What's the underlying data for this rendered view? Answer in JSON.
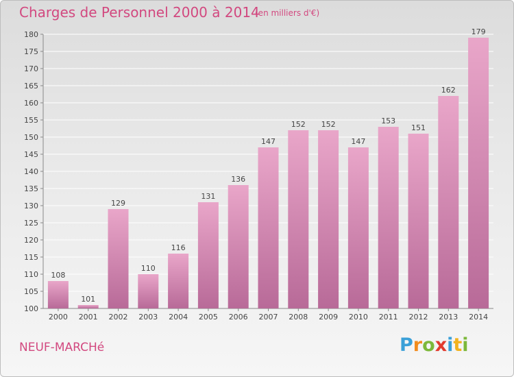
{
  "title": "Charges de Personnel 2000 à 2014",
  "subtitle": "(en milliers d'€)",
  "commune": "NEUF-MARCHé",
  "logo": {
    "letters": [
      "P",
      "r",
      "o",
      "x",
      "i",
      "t",
      "i"
    ],
    "colors": [
      "#3aa0d8",
      "#f28c1e",
      "#7cb83a",
      "#e23b2e",
      "#3aa0d8",
      "#f2b21e",
      "#7cb83a"
    ]
  },
  "colors": {
    "accent": "#d2487f",
    "bar_top": "#e9a6c9",
    "bar_bottom": "#b86a98",
    "grid": "#ffffff"
  },
  "chart_data": {
    "type": "bar",
    "categories": [
      "2000",
      "2001",
      "2002",
      "2003",
      "2004",
      "2005",
      "2006",
      "2007",
      "2008",
      "2009",
      "2010",
      "2011",
      "2012",
      "2013",
      "2014"
    ],
    "values": [
      108,
      101,
      129,
      110,
      116,
      131,
      136,
      147,
      152,
      152,
      147,
      153,
      151,
      162,
      179
    ],
    "ylim": [
      100,
      180
    ],
    "yticks": [
      100,
      105,
      110,
      115,
      120,
      125,
      130,
      135,
      140,
      145,
      150,
      155,
      160,
      165,
      170,
      175,
      180
    ],
    "grid": true,
    "data_labels": true
  }
}
